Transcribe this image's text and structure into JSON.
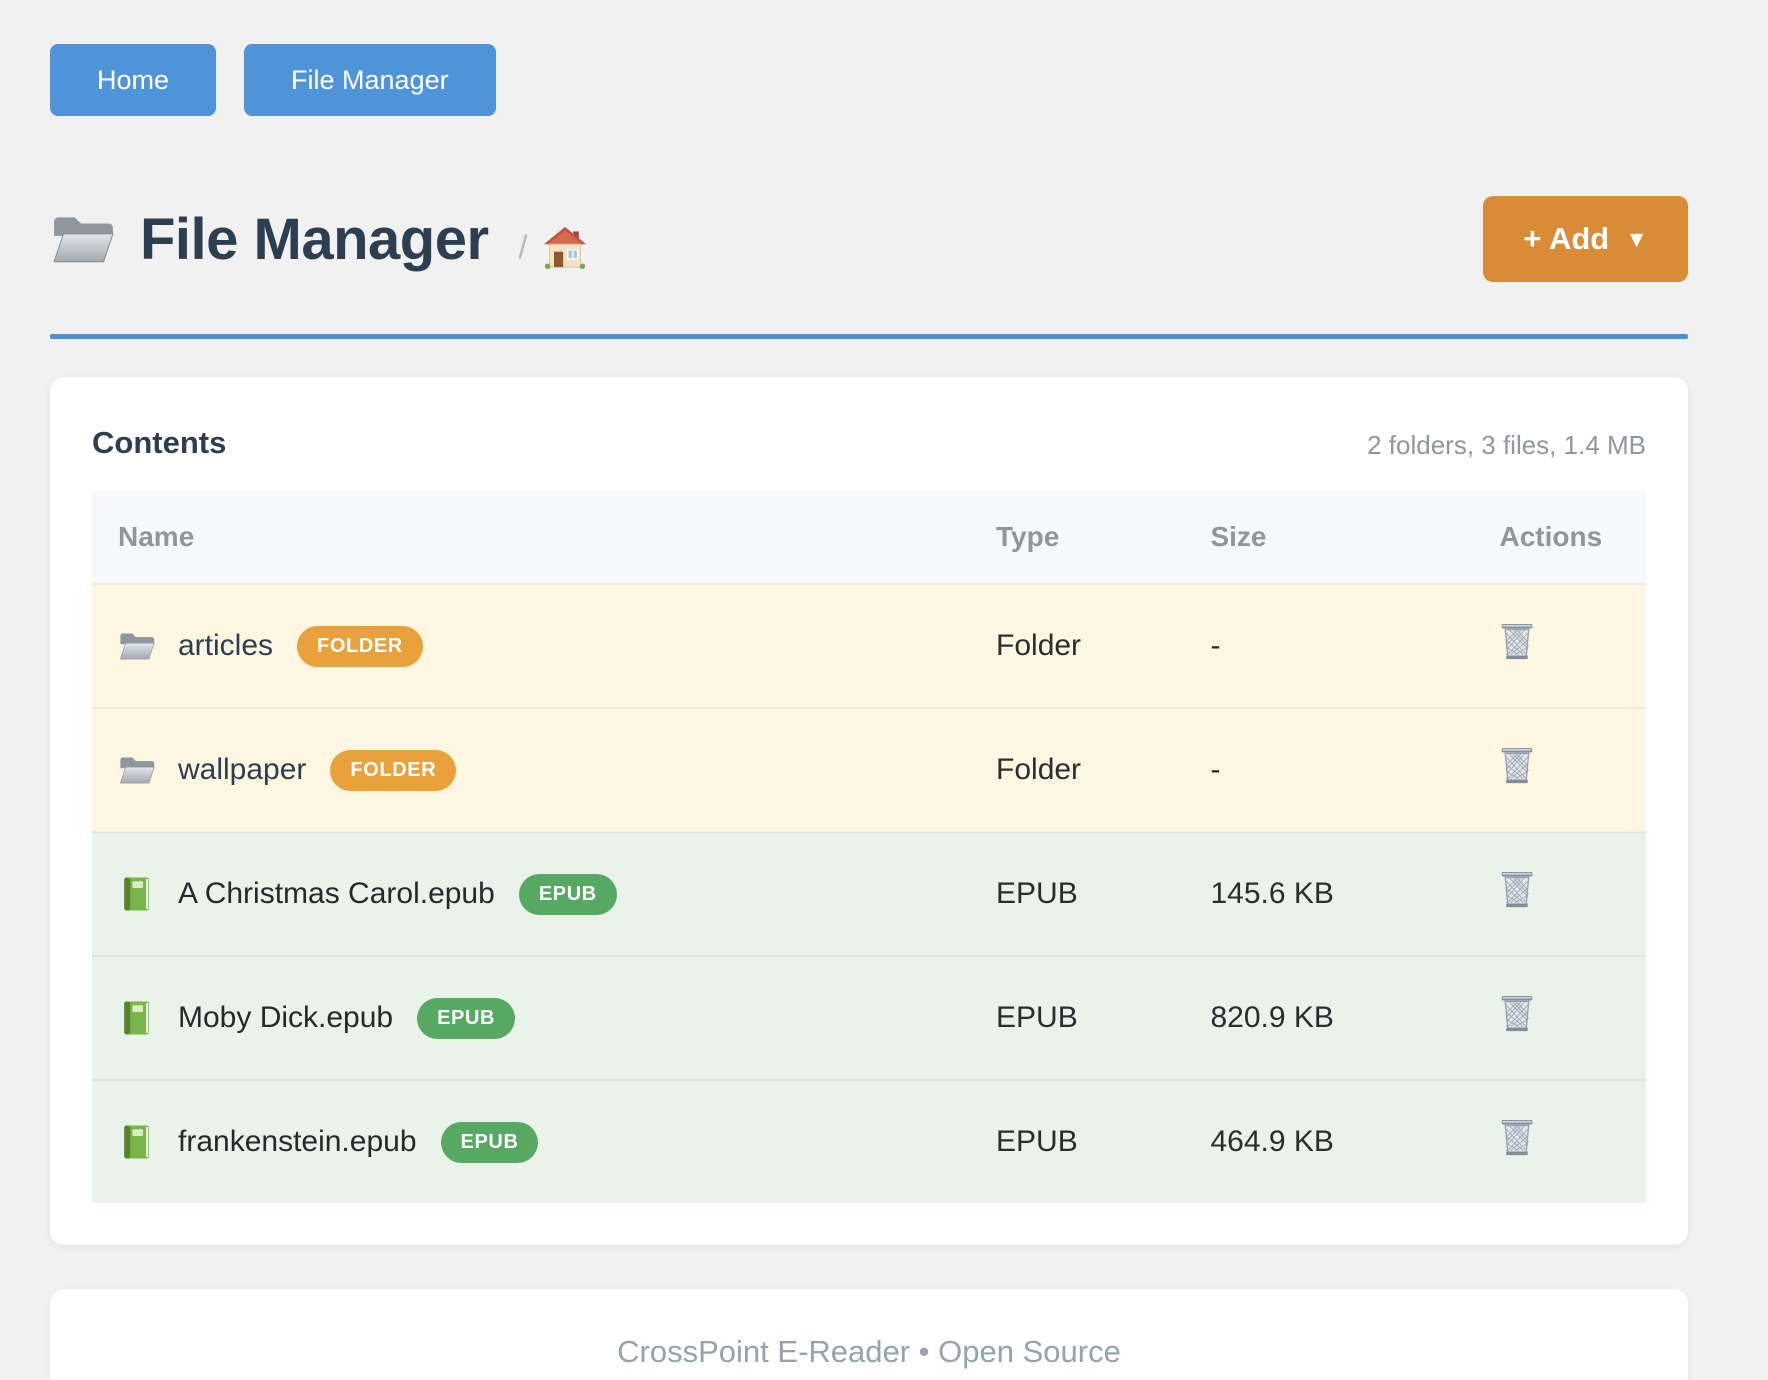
{
  "nav": {
    "buttons": [
      {
        "label": "Home"
      },
      {
        "label": "File Manager"
      }
    ]
  },
  "header": {
    "title": "File Manager",
    "title_icon": "folder-icon",
    "breadcrumb_separator": "/",
    "breadcrumb_home_icon": "home-icon",
    "add_button_label": "+ Add",
    "add_button_caret": "▼"
  },
  "contents": {
    "heading": "Contents",
    "summary": "2 folders, 3 files, 1.4 MB",
    "table": {
      "columns": [
        "Name",
        "Type",
        "Size",
        "Actions"
      ],
      "action_icon": "trash-icon",
      "rows": [
        {
          "name": "articles",
          "icon": "folder-icon",
          "badge": "FOLDER",
          "type": "Folder",
          "size": "-",
          "kind": "folder"
        },
        {
          "name": "wallpaper",
          "icon": "folder-icon",
          "badge": "FOLDER",
          "type": "Folder",
          "size": "-",
          "kind": "folder"
        },
        {
          "name": "A Christmas Carol.epub",
          "icon": "book-icon",
          "badge": "EPUB",
          "type": "EPUB",
          "size": "145.6 KB",
          "kind": "epub"
        },
        {
          "name": "Moby Dick.epub",
          "icon": "book-icon",
          "badge": "EPUB",
          "type": "EPUB",
          "size": "820.9 KB",
          "kind": "epub"
        },
        {
          "name": "frankenstein.epub",
          "icon": "book-icon",
          "badge": "EPUB",
          "type": "EPUB",
          "size": "464.9 KB",
          "kind": "epub"
        }
      ]
    }
  },
  "footer": {
    "text": "CrossPoint E-Reader • Open Source"
  },
  "colors": {
    "page_bg": "#f1f1f2",
    "accent_blue": "#4f93d8",
    "divider_blue": "#4a90d9",
    "accent_orange": "#d98b35",
    "badge_folder": "#e9a23b",
    "badge_epub": "#57a863",
    "row_folder_bg": "#fdf6e1",
    "row_epub_bg": "#e9f3ea",
    "table_header_bg": "#f6f8fa",
    "heading_color": "#2d3e50",
    "muted_color": "#8d979e",
    "cell_text_color": "#2a2d30",
    "footer_text_color": "#93a5aa"
  }
}
